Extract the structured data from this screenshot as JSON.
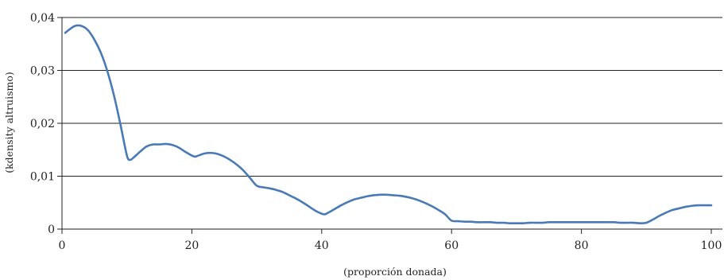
{
  "chart_data": {
    "type": "line",
    "title": "",
    "xlabel": "(proporción donada)",
    "ylabel": "(kdensity altruismo)",
    "xlim": [
      0,
      100
    ],
    "ylim": [
      0,
      0.04
    ],
    "x_ticks": [
      0,
      20,
      40,
      60,
      80,
      100
    ],
    "x_tick_labels": [
      "0",
      "20",
      "40",
      "60",
      "80",
      "100"
    ],
    "y_ticks": [
      0,
      0.01,
      0.02,
      0.03,
      0.04
    ],
    "y_tick_labels": [
      "0",
      "0,01",
      "0,02",
      "0,03",
      "0,04"
    ],
    "grid": "horizontal",
    "colors": {
      "series": "#4a7ab5"
    },
    "series": [
      {
        "x": [
          0.5,
          1,
          2,
          3,
          4,
          5,
          6,
          7,
          8,
          9,
          10,
          10.5,
          11,
          12,
          13,
          14,
          15,
          16,
          17,
          18,
          19,
          20,
          20.5,
          21,
          22,
          23,
          24,
          25,
          26,
          27,
          28,
          29,
          30,
          31,
          32,
          33,
          34,
          35,
          36,
          37,
          38,
          39,
          40,
          40.5,
          41,
          42,
          43,
          44,
          45,
          46,
          47,
          48,
          49,
          50,
          51,
          52,
          53,
          54,
          55,
          56,
          57,
          58,
          59,
          60,
          61,
          62,
          63,
          64,
          65,
          66,
          67,
          68,
          69,
          70,
          71,
          72,
          73,
          74,
          75,
          76,
          77,
          78,
          79,
          80,
          81,
          82,
          83,
          84,
          85,
          86,
          87,
          88,
          89,
          90,
          91,
          92,
          93,
          94,
          95,
          96,
          97,
          98,
          99,
          100
        ],
        "y": [
          0.0371,
          0.0376,
          0.0384,
          0.0384,
          0.0376,
          0.0358,
          0.0333,
          0.0298,
          0.0253,
          0.0198,
          0.0139,
          0.0131,
          0.0135,
          0.0146,
          0.0156,
          0.016,
          0.016,
          0.0161,
          0.0159,
          0.0154,
          0.0146,
          0.0139,
          0.0137,
          0.0139,
          0.0143,
          0.0144,
          0.0142,
          0.0137,
          0.013,
          0.0121,
          0.011,
          0.0096,
          0.0082,
          0.0079,
          0.0077,
          0.0074,
          0.007,
          0.0064,
          0.0058,
          0.0051,
          0.0043,
          0.0035,
          0.0029,
          0.0028,
          0.0031,
          0.0038,
          0.0045,
          0.0051,
          0.0056,
          0.0059,
          0.0062,
          0.0064,
          0.0065,
          0.0065,
          0.0064,
          0.0063,
          0.0061,
          0.0058,
          0.0054,
          0.0049,
          0.0043,
          0.0036,
          0.0028,
          0.0016,
          0.0015,
          0.0014,
          0.0014,
          0.0013,
          0.0013,
          0.0013,
          0.0012,
          0.0012,
          0.0011,
          0.0011,
          0.0011,
          0.0012,
          0.0012,
          0.0012,
          0.0013,
          0.0013,
          0.0013,
          0.0013,
          0.0013,
          0.0013,
          0.0013,
          0.0013,
          0.0013,
          0.0013,
          0.0013,
          0.0012,
          0.0012,
          0.0012,
          0.0011,
          0.0012,
          0.0018,
          0.0025,
          0.0031,
          0.0036,
          0.0039,
          0.0042,
          0.0044,
          0.0045,
          0.0045,
          0.0045
        ]
      }
    ]
  }
}
